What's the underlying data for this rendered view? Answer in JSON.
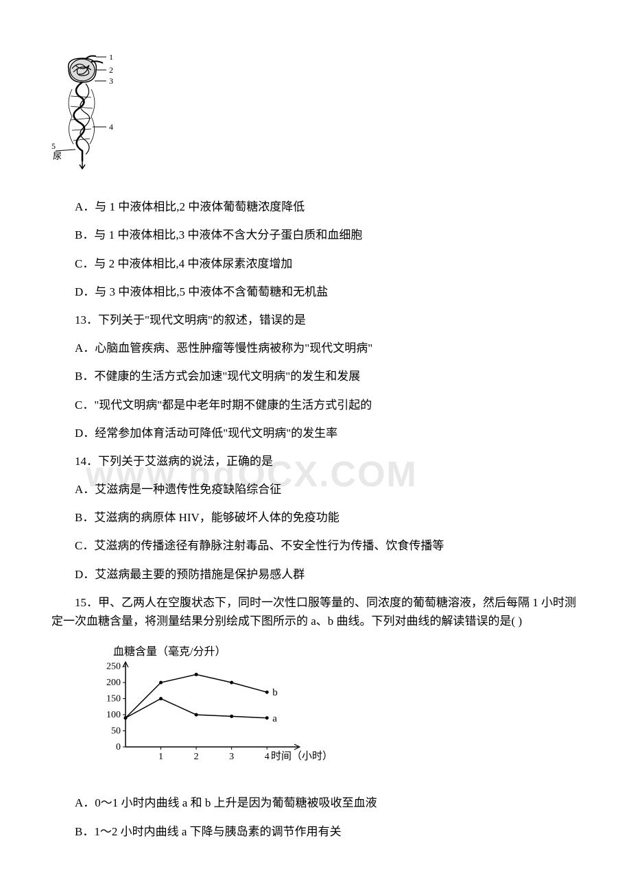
{
  "diagram_kidney": {
    "labels": [
      "1",
      "2",
      "3",
      "4",
      "5"
    ],
    "bottom_label": "尿"
  },
  "q12": {
    "options": {
      "a": "A．与 1 中液体相比,2 中液体葡萄糖浓度降低",
      "b": "B．与 1 中液体相比,3 中液体不含大分子蛋白质和血细胞",
      "c": "C．与 2 中液体相比,4 中液体尿素浓度增加",
      "d": "D．与 3 中液体相比,5 中液体不含葡萄糖和无机盐"
    }
  },
  "q13": {
    "text": "13．下列关于\"现代文明病\"的叙述，错误的是",
    "options": {
      "a": "A．心脑血管疾病、恶性肿瘤等慢性病被称为\"现代文明病\"",
      "b": "B．不健康的生活方式会加速\"现代文明病\"的发生和发展",
      "c": "C．\"现代文明病\"都是中老年时期不健康的生活方式引起的",
      "d": "D．经常参加体育活动可降低\"现代文明病\"的发生率"
    }
  },
  "q14": {
    "text": "14．下列关于艾滋病的说法，正确的是",
    "options": {
      "a": "A．艾滋病是一种遗传性免疫缺陷综合征",
      "b": "B．艾滋病的病原体 HIV，能够破坏人体的免疫功能",
      "c": "C．艾滋病的传播途径有静脉注射毒品、不安全性行为传播、饮食传播等",
      "d": "D．艾滋病最主要的预防措施是保护易感人群"
    }
  },
  "q15": {
    "text": "15．甲、乙两人在空腹状态下，同时一次性口服等量的、同浓度的葡萄糖溶液，然后每隔 1 小时测定一次血糖含量，将测量结果分别绘成下图所示的 a、b 曲线。下列对曲线的解读错误的是( )",
    "options": {
      "a": "A．0～1 小时内曲线 a 和 b 上升是因为葡萄糖被吸收至血液",
      "b": "B．1～2 小时内曲线 a 下降与胰岛素的调节作用有关"
    }
  },
  "watermark": {
    "text1": "www.bd",
    "text2": "ocx.com",
    "text_upper": "OCX.COM"
  },
  "chart": {
    "ylabel": "血糖含量（毫克/分升）",
    "xlabel": "时间（小时）",
    "yticks": [
      0,
      50,
      100,
      150,
      200,
      250
    ],
    "xticks": [
      1,
      2,
      3,
      4
    ],
    "ylim": [
      0,
      260
    ],
    "xlim": [
      0,
      4.5
    ],
    "series_a": {
      "label": "a",
      "points": [
        [
          0,
          90
        ],
        [
          1,
          150
        ],
        [
          2,
          100
        ],
        [
          3,
          95
        ],
        [
          4,
          90
        ]
      ],
      "color": "#000000",
      "marker": "dot"
    },
    "series_b": {
      "label": "b",
      "points": [
        [
          0,
          90
        ],
        [
          1,
          200
        ],
        [
          2,
          225
        ],
        [
          3,
          200
        ],
        [
          4,
          170
        ]
      ],
      "color": "#000000",
      "marker": "dot"
    },
    "line_width": 1.5,
    "axis_color": "#000000",
    "background_color": "#ffffff"
  }
}
